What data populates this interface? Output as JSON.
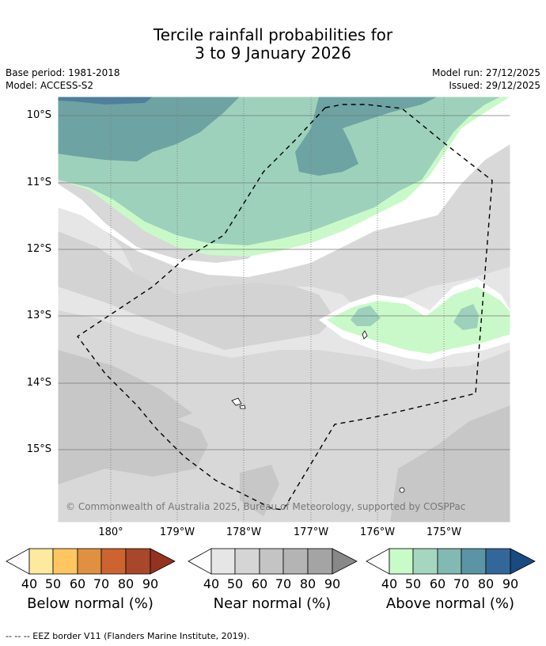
{
  "title": {
    "line1": "Tercile rainfall probabilities for",
    "line2": "3 to 9 January 2026"
  },
  "info": {
    "base_period": "Base period: 1981-2018",
    "model": "Model: ACCESS-S2",
    "model_run": "Model run: 27/12/2025",
    "issued": "Issued: 29/12/2025"
  },
  "map": {
    "lat_labels": [
      "10°S",
      "11°S",
      "12°S",
      "13°S",
      "14°S",
      "15°S"
    ],
    "lon_labels": [
      "180°",
      "179°W",
      "178°W",
      "177°W",
      "176°W",
      "175°W"
    ],
    "copyright": "© Commonwealth of Australia 2025, Bureau of Meteorology, supported by COSPPac",
    "colors": {
      "above_50": "#9dd1bc",
      "above_60": "#6ea3a3",
      "above_70": "#4e7f9b",
      "above_40": "#caf9c9",
      "near_50": "#d8d8d8",
      "near_60": "#c7c7c7",
      "near_40": "#e6e6e6"
    }
  },
  "legends": [
    {
      "label": "Below normal (%)",
      "ticks": [
        "40",
        "50",
        "60",
        "70",
        "80",
        "90"
      ],
      "colors": [
        "#fde99f",
        "#fdc661",
        "#e09040",
        "#cc6330",
        "#a9472a",
        "#93331f"
      ]
    },
    {
      "label": "Near normal (%)",
      "ticks": [
        "40",
        "50",
        "60",
        "70",
        "80",
        "90"
      ],
      "colors": [
        "#e6e6e6",
        "#d5d5d5",
        "#c4c4c4",
        "#b4b4b4",
        "#a4a4a4",
        "#888888"
      ]
    },
    {
      "label": "Above normal (%)",
      "ticks": [
        "40",
        "50",
        "60",
        "70",
        "80",
        "90"
      ],
      "colors": [
        "#c9fbc9",
        "#a5d7c0",
        "#82b9b2",
        "#5b95a5",
        "#33679a",
        "#194a80"
      ]
    }
  ],
  "footnote": "--  --  -- EEZ border V11 (Flanders Marine Institute, 2019)."
}
